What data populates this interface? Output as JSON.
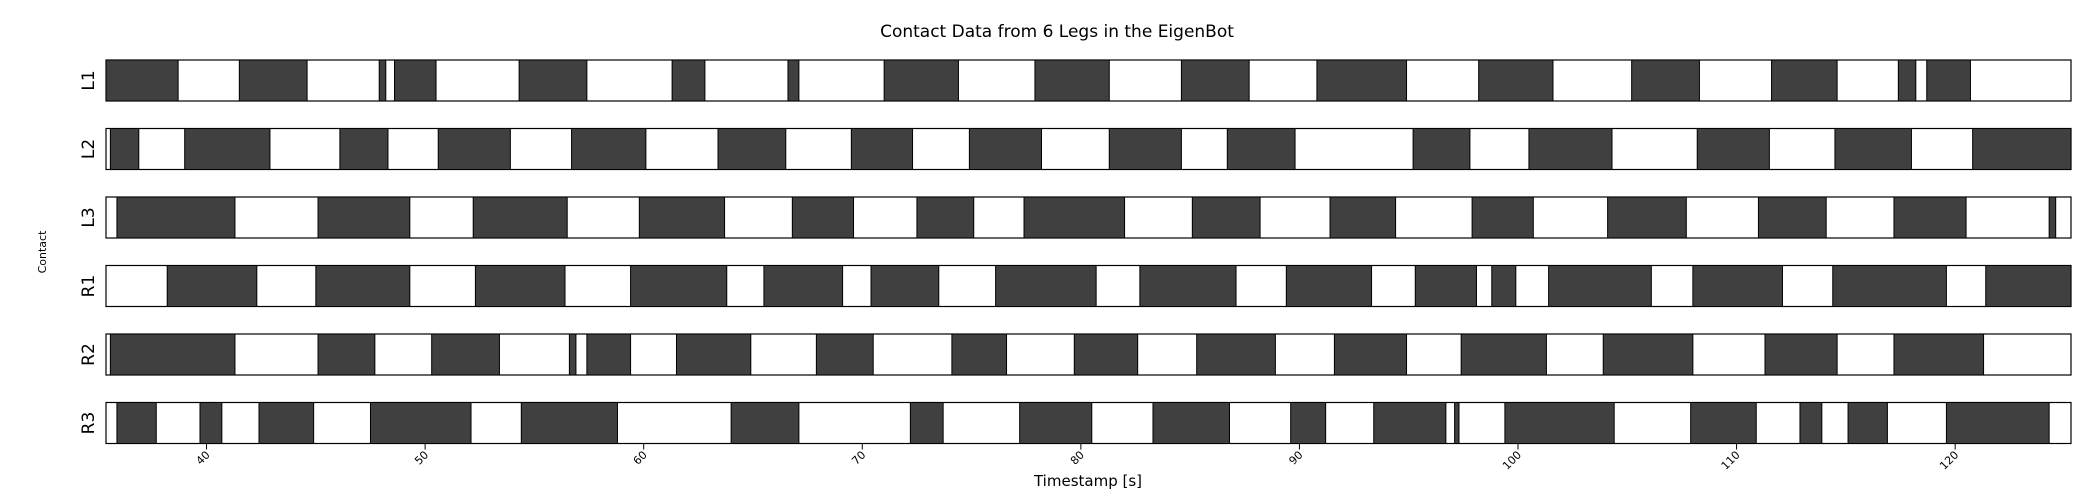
{
  "chart_data": {
    "type": "gantt",
    "title": "Contact Data from 6 Legs in the EigenBot",
    "xlabel": "Timestamp [s]",
    "ylabel": "Contact",
    "xlim": [
      35.4,
      125.3
    ],
    "xticks": [
      40,
      50,
      60,
      70,
      80,
      90,
      100,
      110,
      120
    ],
    "colors": {
      "contact": "#404040",
      "no_contact": "#ffffff",
      "edge": "#000000"
    },
    "legs": [
      {
        "name": "L1",
        "contact": [
          [
            35.4,
            38.7
          ],
          [
            41.5,
            44.6
          ],
          [
            47.9,
            48.2
          ],
          [
            48.6,
            50.5
          ],
          [
            54.3,
            57.4
          ],
          [
            61.3,
            62.8
          ],
          [
            66.6,
            67.1
          ],
          [
            71.0,
            74.4
          ],
          [
            77.9,
            81.3
          ],
          [
            84.6,
            87.7
          ],
          [
            90.8,
            94.9
          ],
          [
            98.2,
            101.6
          ],
          [
            105.2,
            108.3
          ],
          [
            111.6,
            114.6
          ],
          [
            117.4,
            118.2
          ],
          [
            118.7,
            120.7
          ]
        ]
      },
      {
        "name": "L2",
        "contact": [
          [
            35.6,
            36.9
          ],
          [
            39.0,
            42.9
          ],
          [
            46.1,
            48.3
          ],
          [
            50.6,
            53.9
          ],
          [
            56.7,
            60.1
          ],
          [
            63.4,
            66.5
          ],
          [
            69.5,
            72.3
          ],
          [
            74.9,
            78.2
          ],
          [
            81.3,
            84.6
          ],
          [
            86.7,
            89.8
          ],
          [
            95.2,
            97.8
          ],
          [
            100.5,
            104.3
          ],
          [
            108.2,
            111.5
          ],
          [
            114.5,
            118.0
          ],
          [
            120.8,
            125.3
          ]
        ]
      },
      {
        "name": "L3",
        "contact": [
          [
            35.9,
            41.3
          ],
          [
            45.1,
            49.3
          ],
          [
            52.2,
            56.5
          ],
          [
            59.8,
            63.7
          ],
          [
            66.8,
            69.6
          ],
          [
            72.5,
            75.1
          ],
          [
            77.4,
            82.0
          ],
          [
            85.1,
            88.2
          ],
          [
            91.4,
            94.4
          ],
          [
            97.9,
            100.7
          ],
          [
            104.1,
            107.7
          ],
          [
            111.0,
            114.1
          ],
          [
            117.2,
            120.5
          ],
          [
            124.3,
            124.6
          ]
        ]
      },
      {
        "name": "R1",
        "contact": [
          [
            38.2,
            42.3
          ],
          [
            45.0,
            49.3
          ],
          [
            52.3,
            56.4
          ],
          [
            59.4,
            63.8
          ],
          [
            65.5,
            69.1
          ],
          [
            70.4,
            73.5
          ],
          [
            76.1,
            80.7
          ],
          [
            82.7,
            87.1
          ],
          [
            89.4,
            93.3
          ],
          [
            95.3,
            98.1
          ],
          [
            98.8,
            99.9
          ],
          [
            101.4,
            106.1
          ],
          [
            108.0,
            112.1
          ],
          [
            114.4,
            119.6
          ],
          [
            121.4,
            125.3
          ]
        ]
      },
      {
        "name": "R2",
        "contact": [
          [
            35.6,
            41.3
          ],
          [
            45.1,
            47.7
          ],
          [
            50.3,
            53.4
          ],
          [
            56.6,
            56.9
          ],
          [
            57.4,
            59.4
          ],
          [
            61.5,
            64.9
          ],
          [
            67.9,
            70.5
          ],
          [
            74.1,
            76.6
          ],
          [
            79.7,
            82.6
          ],
          [
            85.3,
            88.9
          ],
          [
            91.6,
            94.9
          ],
          [
            97.4,
            101.3
          ],
          [
            103.9,
            108.0
          ],
          [
            111.3,
            114.6
          ],
          [
            117.2,
            121.3
          ]
        ]
      },
      {
        "name": "R3",
        "contact": [
          [
            35.9,
            37.7
          ],
          [
            39.7,
            40.7
          ],
          [
            42.4,
            44.9
          ],
          [
            47.5,
            52.1
          ],
          [
            54.4,
            58.8
          ],
          [
            64.0,
            67.1
          ],
          [
            72.2,
            73.7
          ],
          [
            77.2,
            80.5
          ],
          [
            83.3,
            86.8
          ],
          [
            89.6,
            91.2
          ],
          [
            93.4,
            96.7
          ],
          [
            97.1,
            97.3
          ],
          [
            99.4,
            104.4
          ],
          [
            107.9,
            110.9
          ],
          [
            112.9,
            113.9
          ],
          [
            115.1,
            116.9
          ],
          [
            119.6,
            124.3
          ]
        ]
      }
    ]
  }
}
